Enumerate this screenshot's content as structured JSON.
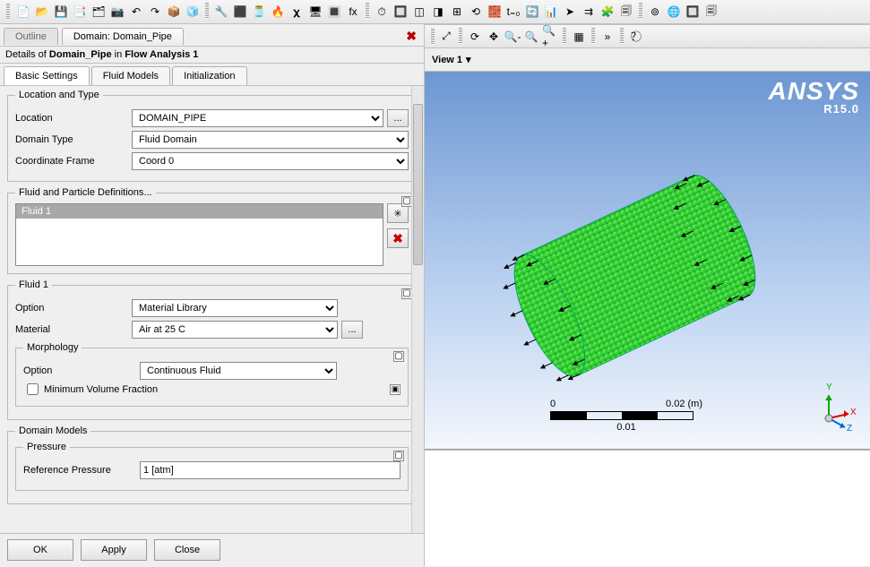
{
  "toolbar_icons": [
    "📄",
    "📂",
    "💾",
    "📑",
    "🗂",
    "📷",
    "↶",
    "↷",
    "📦",
    "🧊",
    "·",
    "🔧",
    "⬛",
    "🫙",
    "🔥",
    "𝛘",
    "🖥",
    "🔳",
    "fx",
    "·",
    "⏱",
    "🔲",
    "◫",
    "◨",
    "⊞",
    "⟲",
    "🧱",
    "t₌₀",
    "🔄",
    "📊",
    "➤",
    "⇉",
    "🧩",
    "🗐",
    "·",
    "⊚",
    "🌐",
    "🔲",
    "🗐"
  ],
  "tabs": {
    "outline": "Outline",
    "active": "Domain: Domain_Pipe"
  },
  "details_header": {
    "pre": "Details of ",
    "name": "Domain_Pipe",
    "mid": " in ",
    "loc": "Flow Analysis 1"
  },
  "subtabs": [
    "Basic Settings",
    "Fluid Models",
    "Initialization"
  ],
  "groups": {
    "loc_type": "Location and Type",
    "fluid_defs": "Fluid and Particle Definitions...",
    "fluid1": "Fluid 1",
    "morphology": "Morphology",
    "domain_models": "Domain Models",
    "pressure": "Pressure"
  },
  "labels": {
    "location": "Location",
    "domain_type": "Domain Type",
    "coord_frame": "Coordinate Frame",
    "option": "Option",
    "material": "Material",
    "morph_option": "Option",
    "min_vf": "Minimum Volume Fraction",
    "ref_pressure": "Reference Pressure"
  },
  "values": {
    "location": "DOMAIN_PIPE",
    "domain_type": "Fluid Domain",
    "coord_frame": "Coord 0",
    "fluid_item": "Fluid 1",
    "option": "Material Library",
    "material": "Air at 25 C",
    "morph_option": "Continuous Fluid",
    "ref_pressure": "1 [atm]"
  },
  "buttons": {
    "ok": "OK",
    "apply": "Apply",
    "close": "Close",
    "ellipsis": "..."
  },
  "view_tab": "View 1",
  "brand": {
    "name": "ANSYS",
    "ver": "R15.0"
  },
  "scale": {
    "left": "0",
    "right": "0.02  (m)",
    "mid": "0.01"
  },
  "triad": {
    "x": "X",
    "y": "Y",
    "z": "Z"
  },
  "rtoolbar_icons": [
    "⤢",
    "·",
    "⟳",
    "✥",
    "🔍-",
    "🔍",
    "🔍+",
    "·",
    "▦",
    "·",
    "»",
    "·",
    "？⃝"
  ],
  "colors": {
    "mesh": "#28e028",
    "mesh_edge": "#16a016"
  }
}
